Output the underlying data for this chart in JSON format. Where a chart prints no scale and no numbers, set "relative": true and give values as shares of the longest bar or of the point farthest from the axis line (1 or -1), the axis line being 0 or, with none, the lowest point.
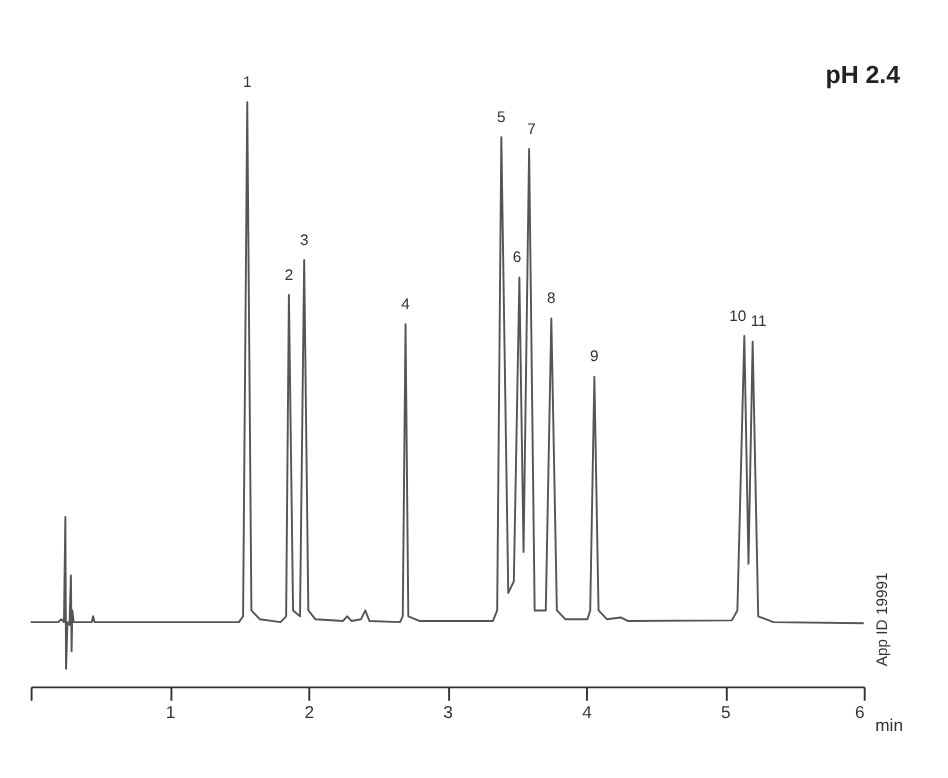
{
  "chart_data": {
    "type": "line",
    "title": "pH 2.4",
    "xlabel": "min",
    "relative": true,
    "grid": false,
    "marker": "none",
    "line_style": "solid",
    "xlim": [
      0,
      6
    ],
    "xticks": [
      {
        "value": 0,
        "label": null
      },
      1,
      2,
      3,
      4,
      5,
      6
    ],
    "x": [
      0,
      0.2,
      0.22,
      0.24,
      0.25,
      0.255,
      0.265,
      0.28,
      0.29,
      0.295,
      0.3,
      0.31,
      0.44,
      0.45,
      0.46,
      1.5,
      1.53,
      1.56,
      1.59,
      1.65,
      1.8,
      1.84,
      1.86,
      1.89,
      1.94,
      1.97,
      2.0,
      2.05,
      2.25,
      2.28,
      2.31,
      2.38,
      2.41,
      2.44,
      2.66,
      2.68,
      2.7,
      2.72,
      2.8,
      3.33,
      3.36,
      3.39,
      3.44,
      3.48,
      3.52,
      3.55,
      3.59,
      3.63,
      3.71,
      3.75,
      3.79,
      3.85,
      4.01,
      4.03,
      4.06,
      4.09,
      4.15,
      4.25,
      4.3,
      5.05,
      5.09,
      5.14,
      5.17,
      5.2,
      5.24,
      5.35,
      6.0
    ],
    "series": [
      {
        "color": "#555555",
        "values": [
          0.11,
          0.11,
          0.115,
          0.11,
          0.29,
          0.03,
          0.11,
          0.105,
          0.19,
          0.06,
          0.13,
          0.11,
          0.11,
          0.12,
          0.11,
          0.11,
          0.12,
          1.0,
          0.13,
          0.115,
          0.11,
          0.12,
          0.67,
          0.13,
          0.12,
          0.73,
          0.13,
          0.115,
          0.112,
          0.12,
          0.112,
          0.115,
          0.13,
          0.112,
          0.11,
          0.12,
          0.62,
          0.12,
          0.112,
          0.112,
          0.13,
          0.94,
          0.16,
          0.18,
          0.7,
          0.23,
          0.92,
          0.13,
          0.13,
          0.63,
          0.13,
          0.115,
          0.115,
          0.13,
          0.53,
          0.13,
          0.115,
          0.118,
          0.112,
          0.113,
          0.13,
          0.6,
          0.21,
          0.59,
          0.12,
          0.11,
          0.108
        ]
      }
    ],
    "annotations": [
      {
        "text": "1",
        "x": 1.56,
        "y": 1.0
      },
      {
        "text": "2",
        "x": 1.86,
        "y": 0.67
      },
      {
        "text": "3",
        "x": 1.97,
        "y": 0.73
      },
      {
        "text": "4",
        "x": 2.7,
        "y": 0.62
      },
      {
        "text": "5",
        "x": 3.39,
        "y": 0.94
      },
      {
        "text": "6",
        "x": 3.52,
        "y": 0.7
      },
      {
        "text": "7",
        "x": 3.59,
        "y": 0.92
      },
      {
        "text": "8",
        "x": 3.75,
        "y": 0.63
      },
      {
        "text": "9",
        "x": 4.06,
        "y": 0.53
      },
      {
        "text": "10",
        "x": 5.14,
        "y": 0.6
      },
      {
        "text": "11",
        "x": 5.2,
        "y": 0.59
      },
      "App ID 19991"
    ]
  }
}
